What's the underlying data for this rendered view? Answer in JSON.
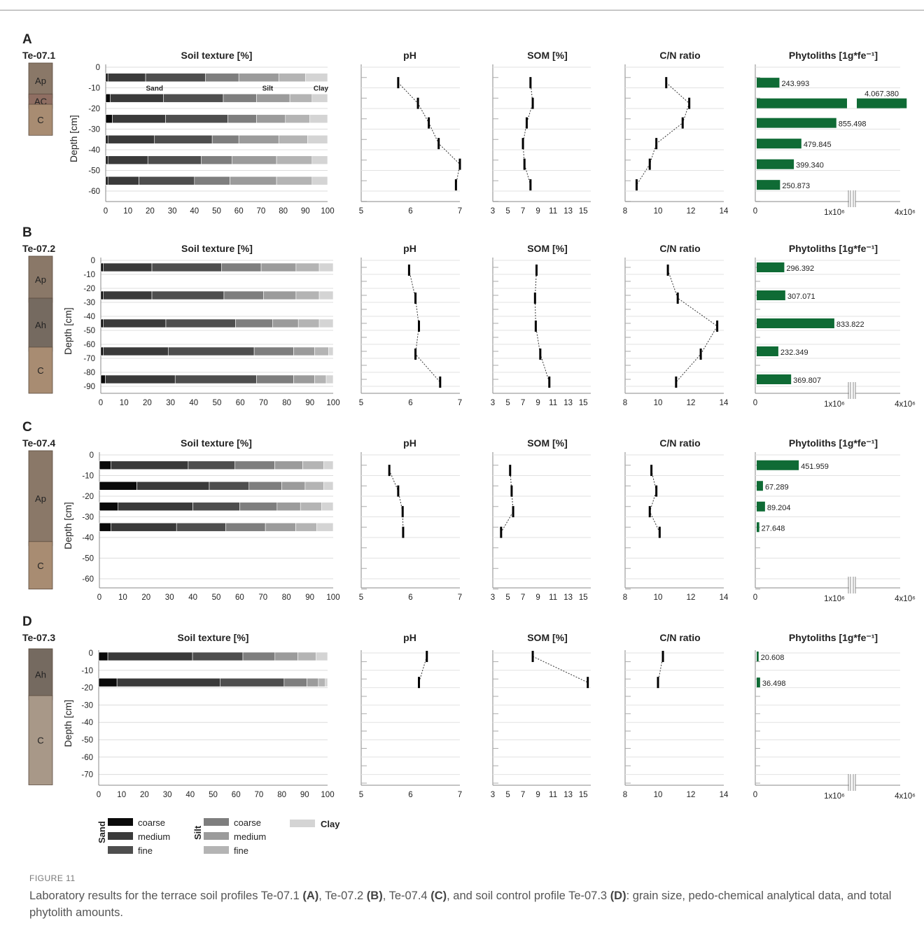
{
  "chart_data": [
    {
      "type": "bar",
      "panel": "A",
      "profile": "Te-07.1",
      "horizons": [
        {
          "name": "Ap",
          "color": "#8a7868",
          "from": 0,
          "to": -15
        },
        {
          "name": "AC",
          "color": "#8f6e62",
          "from": -15,
          "to": -20
        },
        {
          "name": "C",
          "color": "#a88c72",
          "from": -20,
          "to": -33
        }
      ],
      "depth_axis": {
        "label": "Depth [cm]",
        "min": 0,
        "max": -65,
        "ticks": [
          0,
          -10,
          -20,
          -30,
          -40,
          -50,
          -60
        ]
      },
      "texture": {
        "title": "Soil texture [%]",
        "annotations": [
          {
            "text": "Sand",
            "depth": -10,
            "x": 22
          },
          {
            "text": "Silt",
            "depth": -10,
            "x": 73
          },
          {
            "text": "Clay",
            "depth": -10,
            "x": 97
          }
        ],
        "rows": [
          {
            "depth": -5,
            "cum": [
              1,
              18,
              45,
              60,
              78,
              90,
              100
            ]
          },
          {
            "depth": -15,
            "cum": [
              2,
              26,
              53,
              68,
              83,
              93,
              100
            ]
          },
          {
            "depth": -25,
            "cum": [
              3,
              27,
              55,
              68,
              81,
              92,
              100
            ]
          },
          {
            "depth": -35,
            "cum": [
              1,
              22,
              48,
              60,
              78,
              91,
              100
            ]
          },
          {
            "depth": -45,
            "cum": [
              1,
              19,
              43,
              57,
              77,
              93,
              100
            ]
          },
          {
            "depth": -55,
            "cum": [
              1,
              15,
              40,
              56,
              77,
              93,
              100
            ]
          }
        ]
      },
      "ph": {
        "title": "pH",
        "points": [
          [
            5.75,
            -7.5
          ],
          [
            6.15,
            -17.5
          ],
          [
            6.37,
            -27
          ],
          [
            6.57,
            -37
          ],
          [
            7.0,
            -47
          ],
          [
            6.92,
            -57
          ]
        ]
      },
      "som": {
        "title": "SOM [%]",
        "points": [
          [
            8.0,
            -7.5
          ],
          [
            8.3,
            -17.5
          ],
          [
            7.5,
            -27
          ],
          [
            7.0,
            -37
          ],
          [
            7.2,
            -47
          ],
          [
            8.0,
            -57
          ]
        ]
      },
      "cn": {
        "title": "C/N ratio",
        "points": [
          [
            10.5,
            -7.5
          ],
          [
            11.9,
            -17.5
          ],
          [
            11.5,
            -27
          ],
          [
            9.9,
            -37
          ],
          [
            9.5,
            -47
          ],
          [
            8.7,
            -57
          ]
        ]
      },
      "phyto": {
        "title": "Phytoliths [1g*fe⁻¹]",
        "bars": [
          {
            "depth": -7.5,
            "value": 243993,
            "label": "243.993"
          },
          {
            "depth": -17.5,
            "value": 4067380,
            "label": "4.067.380"
          },
          {
            "depth": -27,
            "value": 855498,
            "label": "855.498"
          },
          {
            "depth": -37,
            "value": 479845,
            "label": "479.845"
          },
          {
            "depth": -47,
            "value": 399340,
            "label": "399.340"
          },
          {
            "depth": -57,
            "value": 250873,
            "label": "250.873"
          }
        ]
      }
    },
    {
      "type": "bar",
      "panel": "B",
      "profile": "Te-07.2",
      "horizons": [
        {
          "name": "Ap",
          "color": "#8a7868",
          "from": 0,
          "to": -30
        },
        {
          "name": "Ah",
          "color": "#756a60",
          "from": -30,
          "to": -65
        },
        {
          "name": "C",
          "color": "#a88c72",
          "from": -65,
          "to": -95
        }
      ],
      "depth_axis": {
        "label": "Depth [cm]",
        "min": 0,
        "max": -95,
        "ticks": [
          0,
          -10,
          -20,
          -30,
          -40,
          -50,
          -60,
          -70,
          -80,
          -90
        ]
      },
      "texture": {
        "title": "Soil texture [%]",
        "annotations": [],
        "rows": [
          {
            "depth": -5,
            "cum": [
              1,
              22,
              52,
              69,
              84,
              94,
              100
            ]
          },
          {
            "depth": -25,
            "cum": [
              1,
              22,
              53,
              70,
              84,
              94,
              100
            ]
          },
          {
            "depth": -45,
            "cum": [
              1,
              28,
              58,
              74,
              85,
              94,
              100
            ]
          },
          {
            "depth": -65,
            "cum": [
              1,
              29,
              66,
              83,
              92,
              98,
              100
            ]
          },
          {
            "depth": -85,
            "cum": [
              2,
              32,
              67,
              83,
              92,
              97,
              100
            ]
          }
        ]
      },
      "ph": {
        "title": "pH",
        "points": [
          [
            5.97,
            -7
          ],
          [
            6.1,
            -27
          ],
          [
            6.17,
            -47
          ],
          [
            6.1,
            -67
          ],
          [
            6.6,
            -87
          ]
        ]
      },
      "som": {
        "title": "SOM [%]",
        "points": [
          [
            8.8,
            -7
          ],
          [
            8.6,
            -27
          ],
          [
            8.7,
            -47
          ],
          [
            9.3,
            -67
          ],
          [
            10.5,
            -87
          ]
        ]
      },
      "cn": {
        "title": "C/N ratio",
        "points": [
          [
            10.6,
            -7
          ],
          [
            11.2,
            -27
          ],
          [
            13.6,
            -47
          ],
          [
            12.6,
            -67
          ],
          [
            11.1,
            -87
          ]
        ]
      },
      "phyto": {
        "title": "Phytoliths [1g*fe⁻¹]",
        "bars": [
          {
            "depth": -5,
            "value": 296392,
            "label": "296.392"
          },
          {
            "depth": -25,
            "value": 307071,
            "label": "307.071"
          },
          {
            "depth": -45,
            "value": 833822,
            "label": "833.822"
          },
          {
            "depth": -65,
            "value": 232349,
            "label": "232.349"
          },
          {
            "depth": -85,
            "value": 369807,
            "label": "369.807"
          }
        ]
      }
    },
    {
      "type": "bar",
      "panel": "C",
      "profile": "Te-07.4",
      "horizons": [
        {
          "name": "Ap",
          "color": "#8a7868",
          "from": 0,
          "to": -44
        },
        {
          "name": "C",
          "color": "#a88c72",
          "from": -44,
          "to": -65
        }
      ],
      "depth_axis": {
        "label": "Depth [cm]",
        "min": 0,
        "max": -65,
        "ticks": [
          0,
          -10,
          -20,
          -30,
          -40,
          -50,
          -60
        ]
      },
      "texture": {
        "title": "Soil texture [%]",
        "annotations": [],
        "rows": [
          {
            "depth": -5,
            "cum": [
              5,
              38,
              58,
              75,
              87,
              96,
              100
            ]
          },
          {
            "depth": -15,
            "cum": [
              16,
              47,
              64,
              78,
              88,
              96,
              100
            ]
          },
          {
            "depth": -25,
            "cum": [
              8,
              40,
              60,
              76,
              86,
              95,
              100
            ]
          },
          {
            "depth": -35,
            "cum": [
              5,
              33,
              54,
              71,
              84,
              93,
              100
            ]
          }
        ]
      },
      "ph": {
        "title": "pH",
        "points": [
          [
            5.57,
            -7.5
          ],
          [
            5.75,
            -17.5
          ],
          [
            5.84,
            -27.5
          ],
          [
            5.85,
            -37.5
          ]
        ]
      },
      "som": {
        "title": "SOM [%]",
        "points": [
          [
            5.3,
            -7.5
          ],
          [
            5.5,
            -17.5
          ],
          [
            5.7,
            -27.5
          ],
          [
            4.1,
            -37.5
          ]
        ]
      },
      "cn": {
        "title": "C/N ratio",
        "points": [
          [
            9.6,
            -7.5
          ],
          [
            9.9,
            -17.5
          ],
          [
            9.5,
            -27.5
          ],
          [
            10.1,
            -37.5
          ]
        ]
      },
      "phyto": {
        "title": "Phytoliths [1g*fe⁻¹]",
        "bars": [
          {
            "depth": -5,
            "value": 451959,
            "label": "451.959"
          },
          {
            "depth": -15,
            "value": 67289,
            "label": "67.289"
          },
          {
            "depth": -25,
            "value": 89204,
            "label": "89.204"
          },
          {
            "depth": -35,
            "value": 27648,
            "label": "27.648"
          }
        ]
      }
    },
    {
      "type": "bar",
      "panel": "D",
      "profile": "Te-07.3",
      "horizons": [
        {
          "name": "Ah",
          "color": "#756a60",
          "from": 0,
          "to": -27
        },
        {
          "name": "C",
          "color": "#a89888",
          "from": -27,
          "to": -76
        }
      ],
      "depth_axis": {
        "label": "Depth [cm]",
        "min": 0,
        "max": -76,
        "ticks": [
          0,
          -10,
          -20,
          -30,
          -40,
          -50,
          -60,
          -70
        ]
      },
      "texture": {
        "title": "Soil texture [%]",
        "annotations": [],
        "rows": [
          {
            "depth": -2,
            "cum": [
              4,
              41,
              63,
              77,
              87,
              95,
              100
            ]
          },
          {
            "depth": -17,
            "cum": [
              8,
              53,
              81,
              91,
              96,
              99,
              100
            ]
          }
        ]
      },
      "ph": {
        "title": "pH",
        "points": [
          [
            6.33,
            -2
          ],
          [
            6.17,
            -17
          ]
        ]
      },
      "som": {
        "title": "SOM [%]",
        "points": [
          [
            8.3,
            -2
          ],
          [
            15.6,
            -17
          ]
        ]
      },
      "cn": {
        "title": "C/N ratio",
        "points": [
          [
            10.3,
            -2
          ],
          [
            10.0,
            -17
          ]
        ]
      },
      "phyto": {
        "title": "Phytoliths [1g*fe⁻¹]",
        "bars": [
          {
            "depth": -2,
            "value": 20608,
            "label": "20.608"
          },
          {
            "depth": -17,
            "value": 36498,
            "label": "36.498"
          }
        ]
      }
    }
  ],
  "axes": {
    "texture": {
      "min": 0,
      "max": 100,
      "ticks": [
        0,
        10,
        20,
        30,
        40,
        50,
        60,
        70,
        80,
        90,
        100
      ]
    },
    "ph": {
      "min": 5,
      "max": 7,
      "ticks": [
        5,
        6,
        7
      ]
    },
    "som": {
      "min": 3,
      "max": 16,
      "ticks": [
        3,
        5,
        7,
        9,
        11,
        13,
        15
      ]
    },
    "cn": {
      "min": 8,
      "max": 14,
      "ticks": [
        8,
        10,
        12,
        14
      ]
    },
    "phyto": {
      "break_at": 1000000,
      "break_resume": 3550000,
      "max": 4000000,
      "tick_labels": [
        "0",
        "1x10⁶",
        "4x10⁶"
      ]
    }
  },
  "texture_colors": [
    "#0a0a0a",
    "#3a3a3a",
    "#4e4e4e",
    "#7e7e7e",
    "#9b9b9b",
    "#b4b4b4",
    "#d4d4d4"
  ],
  "phyto_color": "#0f6b35",
  "legend": {
    "sand_label": "Sand",
    "silt_label": "Silt",
    "clay_label": "Clay",
    "sand_items": [
      "coarse",
      "medium",
      "fine"
    ],
    "silt_items": [
      "coarse",
      "medium",
      "fine"
    ]
  },
  "caption": {
    "label": "FIGURE 11",
    "text_parts": [
      "Laboratory results for the terrace soil profiles Te-07.1 ",
      "(A)",
      ", Te-07.2 ",
      "(B)",
      ", Te-07.4 ",
      "(C)",
      ", and soil control profile Te-07.3 ",
      "(D)",
      ": grain size, pedo-chemical analytical data, and total phytolith amounts."
    ]
  }
}
